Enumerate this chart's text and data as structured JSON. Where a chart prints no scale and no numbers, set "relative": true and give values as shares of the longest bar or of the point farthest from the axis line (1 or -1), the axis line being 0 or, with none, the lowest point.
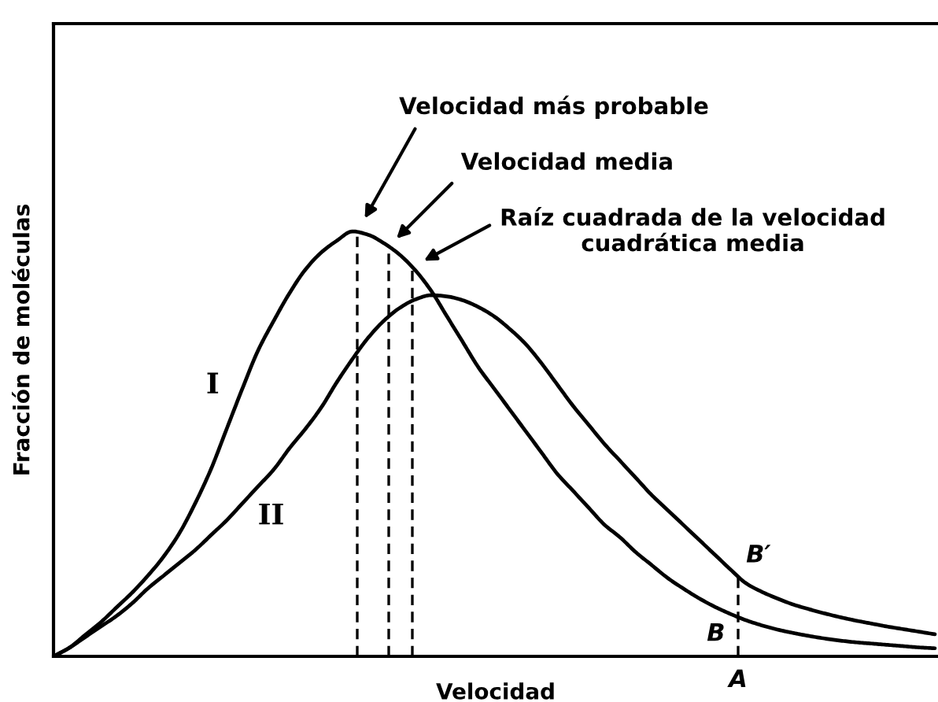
{
  "chart_data": {
    "type": "line",
    "relative": true,
    "xlabel": "Velocidad",
    "ylabel": "Fracción de moléculas",
    "line_style": "solid",
    "categories": [
      null,
      null,
      null,
      null,
      null,
      null,
      null,
      null,
      null,
      null,
      null,
      null,
      null,
      null,
      null,
      null,
      null,
      null,
      null,
      null,
      null,
      null,
      null,
      null,
      null,
      null,
      null,
      null,
      null,
      null,
      null,
      null,
      null,
      null,
      null,
      null,
      null,
      null,
      null,
      null,
      null,
      null,
      null,
      null,
      null,
      null,
      null,
      null,
      null,
      null,
      null,
      null,
      null,
      null,
      null,
      null,
      null
    ],
    "series": [
      {
        "name": "I",
        "color": "#000000",
        "values": [
          0,
          0.02,
          0.05,
          0.08,
          0.115,
          0.15,
          0.19,
          0.235,
          0.29,
          0.36,
          0.44,
          0.535,
          0.63,
          0.72,
          0.79,
          0.855,
          0.91,
          0.95,
          0.978,
          1.0,
          0.992,
          0.972,
          0.945,
          0.908,
          0.86,
          0.8,
          0.74,
          0.68,
          0.63,
          0.58,
          0.53,
          0.48,
          0.43,
          0.39,
          0.35,
          0.31,
          0.28,
          0.245,
          0.215,
          0.185,
          0.16,
          0.137,
          0.117,
          0.1,
          0.085,
          0.073,
          0.063,
          0.055,
          0.048,
          0.042,
          0.037,
          0.033,
          0.03,
          0.027,
          0.024,
          0.021,
          0.019
        ]
      },
      {
        "name": "II",
        "color": "#000000",
        "values": [
          0,
          0.02,
          0.045,
          0.07,
          0.095,
          0.125,
          0.16,
          0.19,
          0.22,
          0.25,
          0.285,
          0.32,
          0.36,
          0.4,
          0.44,
          0.49,
          0.535,
          0.585,
          0.645,
          0.7,
          0.75,
          0.79,
          0.82,
          0.84,
          0.85,
          0.847,
          0.838,
          0.822,
          0.8,
          0.77,
          0.735,
          0.69,
          0.64,
          0.59,
          0.545,
          0.5,
          0.46,
          0.42,
          0.38,
          0.345,
          0.31,
          0.275,
          0.24,
          0.205,
          0.172,
          0.152,
          0.136,
          0.122,
          0.111,
          0.101,
          0.092,
          0.084,
          0.077,
          0.07,
          0.064,
          0.058,
          0.052
        ]
      }
    ],
    "annotations": [
      "Velocidad más probable",
      "Velocidad media",
      "Raíz cuadrada de la velocidad\ncuadrática media",
      "B′",
      "B",
      "A"
    ]
  }
}
